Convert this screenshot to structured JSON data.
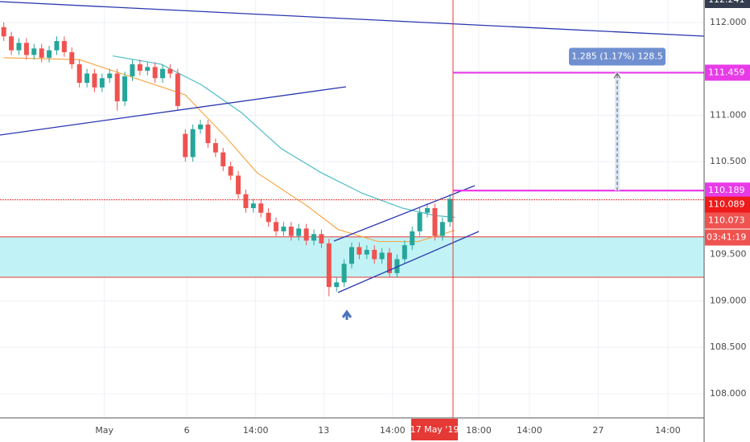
{
  "chart_data": {
    "type": "candlestick",
    "xlim": [
      -0.5,
      92.6
    ],
    "ylim": [
      107.74,
      112.242
    ],
    "xticks": [
      {
        "value": 13.3,
        "label": "May"
      },
      {
        "value": 24.2,
        "label": "6"
      },
      {
        "value": 33.3,
        "label": "14:00"
      },
      {
        "value": 42.3,
        "label": "13"
      },
      {
        "value": 51.4,
        "label": "14:00"
      },
      {
        "value": 62.8,
        "label": "18:00"
      },
      {
        "value": 69.5,
        "label": "14:00"
      },
      {
        "value": 78.6,
        "label": "27"
      },
      {
        "value": 87.8,
        "label": "14:00"
      }
    ],
    "yticks": [
      {
        "value": 112,
        "label": "112.000"
      },
      {
        "value": 111,
        "label": "111.000"
      },
      {
        "value": 110.5,
        "label": "110.500"
      },
      {
        "value": 109.5,
        "label": "109.500"
      },
      {
        "value": 109,
        "label": "109.000"
      },
      {
        "value": 108.5,
        "label": "108.500"
      },
      {
        "value": 108,
        "label": "108.000"
      }
    ],
    "grid": true,
    "up_color": "#26a69a",
    "down_color": "#ef5350",
    "open": [
      111.95,
      111.85,
      111.7,
      111.78,
      111.65,
      111.72,
      111.62,
      111.7,
      111.8,
      111.68,
      111.55,
      111.35,
      111.45,
      111.3,
      111.4,
      111.45,
      111.15,
      111.42,
      111.55,
      111.48,
      111.52,
      111.4,
      111.5,
      111.45,
      110.8,
      110.55,
      110.85,
      110.9,
      110.7,
      110.6,
      110.45,
      110.35,
      110.15,
      110.0,
      110.05,
      109.95,
      109.85,
      109.75,
      109.8,
      109.7,
      109.78,
      109.65,
      109.72,
      109.62,
      109.15,
      109.2,
      109.4,
      109.58,
      109.5,
      109.55,
      109.45,
      109.52,
      109.3,
      109.45,
      109.6,
      109.75,
      109.95,
      110.0,
      109.7,
      109.85
    ],
    "high": [
      112.0,
      111.9,
      111.83,
      111.83,
      111.77,
      111.77,
      111.75,
      111.85,
      111.85,
      111.73,
      111.6,
      111.5,
      111.5,
      111.45,
      111.5,
      111.5,
      111.47,
      111.6,
      111.6,
      111.57,
      111.57,
      111.55,
      111.55,
      111.5,
      110.85,
      110.9,
      110.95,
      110.95,
      110.75,
      110.65,
      110.5,
      110.4,
      110.2,
      110.1,
      110.1,
      110.0,
      109.9,
      109.85,
      109.85,
      109.83,
      109.83,
      109.77,
      109.77,
      109.67,
      109.25,
      109.45,
      109.63,
      109.63,
      109.6,
      109.6,
      109.57,
      109.57,
      109.5,
      109.65,
      109.8,
      110.0,
      110.05,
      110.05,
      109.9,
      110.15
    ],
    "low": [
      111.8,
      111.65,
      111.65,
      111.6,
      111.6,
      111.57,
      111.57,
      111.65,
      111.63,
      111.5,
      111.3,
      111.3,
      111.25,
      111.25,
      111.35,
      111.05,
      111.1,
      111.37,
      111.43,
      111.43,
      111.35,
      111.35,
      111.4,
      111.05,
      110.5,
      110.5,
      110.8,
      110.65,
      110.55,
      110.4,
      110.3,
      110.1,
      109.95,
      109.95,
      109.9,
      109.8,
      109.7,
      109.7,
      109.65,
      109.65,
      109.6,
      109.6,
      109.57,
      109.05,
      109.1,
      109.15,
      109.35,
      109.45,
      109.45,
      109.4,
      109.4,
      109.25,
      109.25,
      109.4,
      109.55,
      109.7,
      109.9,
      109.65,
      109.65,
      109.8
    ],
    "close": [
      111.85,
      111.7,
      111.78,
      111.65,
      111.72,
      111.62,
      111.7,
      111.8,
      111.68,
      111.55,
      111.35,
      111.45,
      111.3,
      111.4,
      111.45,
      111.15,
      111.42,
      111.55,
      111.48,
      111.52,
      111.4,
      111.5,
      111.45,
      111.1,
      110.55,
      110.85,
      110.9,
      110.7,
      110.6,
      110.45,
      110.35,
      110.15,
      110.0,
      110.05,
      109.95,
      109.85,
      109.75,
      109.8,
      109.7,
      109.78,
      109.65,
      109.72,
      109.62,
      109.15,
      109.2,
      109.4,
      109.58,
      109.5,
      109.55,
      109.45,
      109.52,
      109.3,
      109.45,
      109.6,
      109.75,
      109.95,
      110.0,
      109.7,
      109.85,
      110.1
    ],
    "ma_lines": [
      {
        "color": "#f7a94a",
        "x": [
          0,
          10,
          15.5,
          24,
          29.3,
          33.5,
          40,
          44.2,
          49.5,
          54.8,
          59.6
        ],
        "values": [
          111.62,
          111.6,
          111.45,
          111.22,
          110.77,
          110.38,
          110.03,
          109.77,
          109.64,
          109.64,
          109.76
        ]
      },
      {
        "color": "#4cbcc6",
        "x": [
          14.4,
          20.8,
          26.1,
          31.4,
          36.7,
          42,
          47.4,
          52.7,
          57,
          59.6
        ],
        "values": [
          111.64,
          111.55,
          111.33,
          111.03,
          110.64,
          110.38,
          110.16,
          110.0,
          109.92,
          109.9
        ]
      }
    ],
    "zone": [
      109.255,
      109.69
    ],
    "levels": [
      {
        "value": 111.459,
        "label": "111.459"
      },
      {
        "value": 110.189,
        "label": "110.189"
      },
      {
        "value": 110.089,
        "label": "110.089"
      },
      {
        "value": 110.073,
        "label": "110.073"
      }
    ],
    "top_label": {
      "value": 112.241,
      "label": "112.241"
    },
    "countdown": "03:41:19",
    "crosshair": {
      "value": 59.4,
      "label": "17 May '19"
    },
    "measure": "1.285 (1.17%) 128.5"
  }
}
